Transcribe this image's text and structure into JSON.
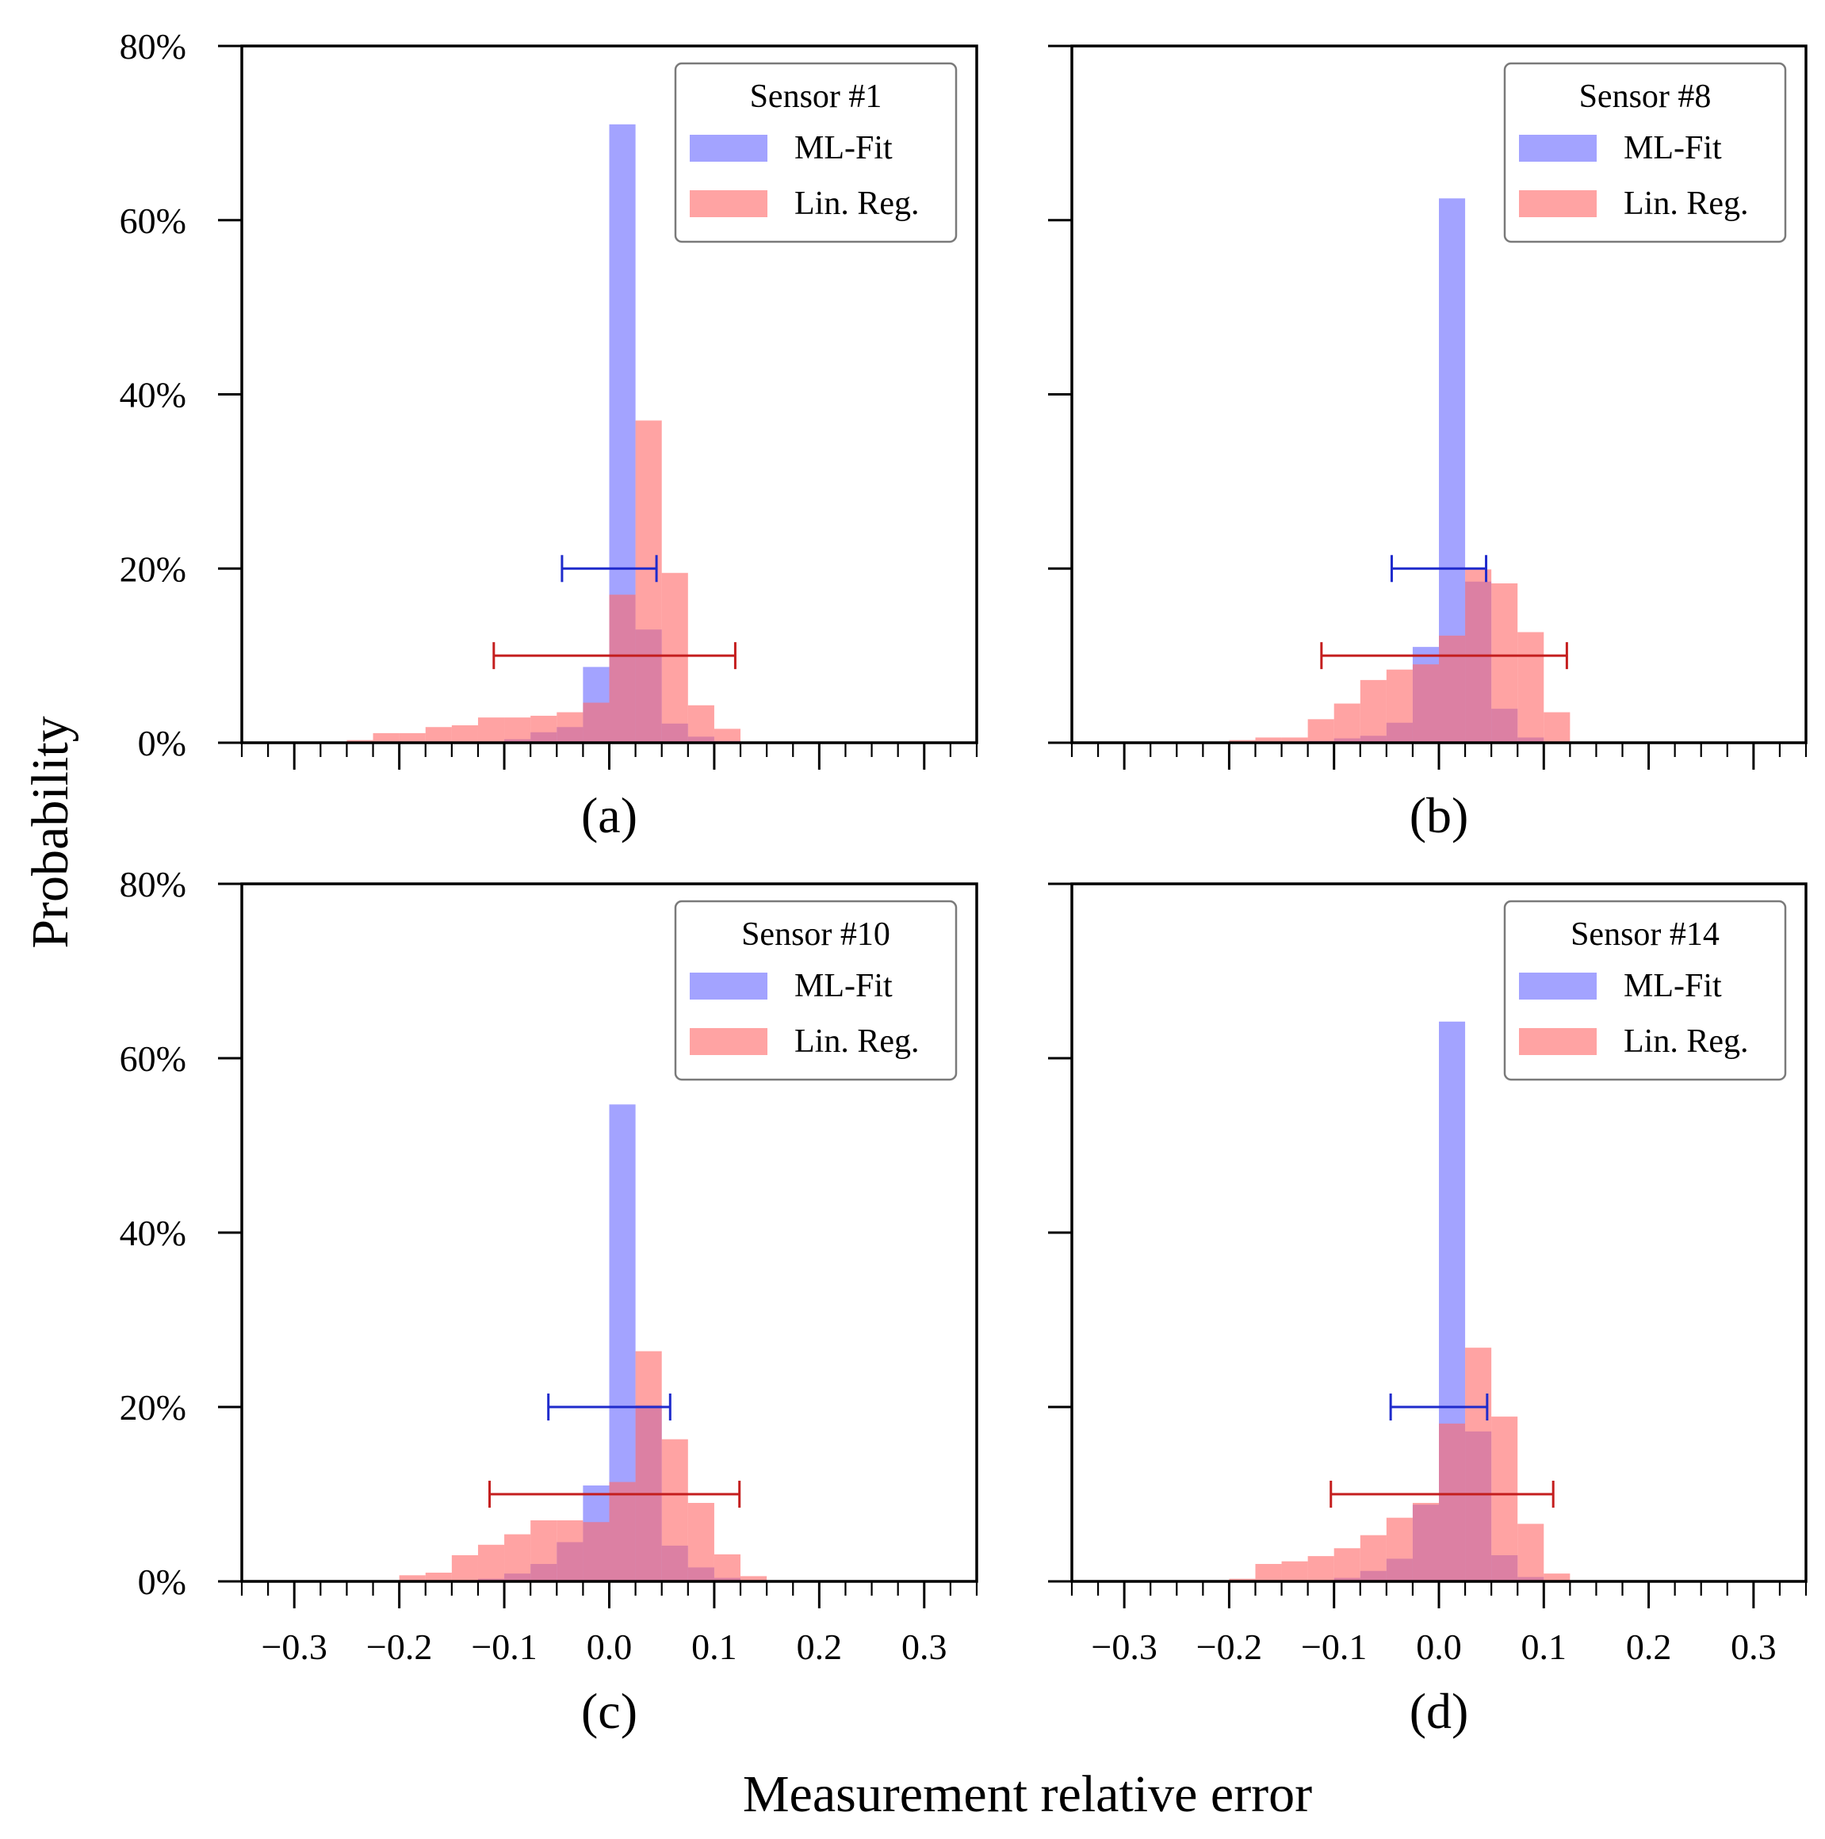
{
  "figure": {
    "ylabel": "Probability",
    "xlabel": "Measurement relative error"
  },
  "colors": {
    "ml_fit": "#6b6bff",
    "lin_reg": "#ff6b6b",
    "ml_fit_errbar": "#1f2bcc",
    "lin_reg_errbar": "#c41e1e"
  },
  "chart_data": [
    {
      "type": "bar",
      "panel_label": "(a)",
      "legend_title": "Sensor #1",
      "legend_placement": "top-right",
      "xlim": [
        -0.35,
        0.35
      ],
      "ylim": [
        0,
        80
      ],
      "xticks": [
        "−0.3",
        "−0.2",
        "−0.1",
        "0.0",
        "0.1",
        "0.2",
        "0.3"
      ],
      "yticks": [
        "0%",
        "20%",
        "40%",
        "60%",
        "80%"
      ],
      "show_xtick_labels": false,
      "show_ytick_labels": true,
      "bin_width": 0.025,
      "series": [
        {
          "name": "ML-Fit",
          "bins": [
            [
              -0.1,
              0.4
            ],
            [
              -0.075,
              1.2
            ],
            [
              -0.05,
              1.8
            ],
            [
              -0.025,
              8.7
            ],
            [
              0.0,
              71.0
            ],
            [
              0.025,
              13.0
            ],
            [
              0.05,
              2.2
            ],
            [
              0.075,
              0.7
            ],
            [
              0.1,
              0.2
            ]
          ],
          "error_bar": {
            "center": 0.0,
            "halfwidth": 0.045,
            "y": 20
          }
        },
        {
          "name": "Lin. Reg.",
          "bins": [
            [
              -0.25,
              0.3
            ],
            [
              -0.225,
              1.1
            ],
            [
              -0.2,
              1.1
            ],
            [
              -0.175,
              1.8
            ],
            [
              -0.15,
              2.0
            ],
            [
              -0.125,
              2.9
            ],
            [
              -0.1,
              2.9
            ],
            [
              -0.075,
              3.1
            ],
            [
              -0.05,
              3.5
            ],
            [
              -0.025,
              4.6
            ],
            [
              0.0,
              17.0
            ],
            [
              0.025,
              37.0
            ],
            [
              0.05,
              19.5
            ],
            [
              0.075,
              4.3
            ],
            [
              0.1,
              1.6
            ]
          ],
          "error_bar": {
            "center": 0.005,
            "halfwidth": 0.115,
            "y": 10
          }
        }
      ]
    },
    {
      "type": "bar",
      "panel_label": "(b)",
      "legend_title": "Sensor #8",
      "legend_placement": "top-right",
      "xlim": [
        -0.35,
        0.35
      ],
      "ylim": [
        0,
        80
      ],
      "xticks": [
        "−0.3",
        "−0.2",
        "−0.1",
        "0.0",
        "0.1",
        "0.2",
        "0.3"
      ],
      "yticks": [
        "0%",
        "20%",
        "40%",
        "60%",
        "80%"
      ],
      "show_xtick_labels": false,
      "show_ytick_labels": false,
      "bin_width": 0.025,
      "series": [
        {
          "name": "ML-Fit",
          "bins": [
            [
              -0.125,
              0.2
            ],
            [
              -0.1,
              0.5
            ],
            [
              -0.075,
              0.8
            ],
            [
              -0.05,
              2.3
            ],
            [
              -0.025,
              11.0
            ],
            [
              0.0,
              62.5
            ],
            [
              0.025,
              18.5
            ],
            [
              0.05,
              3.9
            ],
            [
              0.075,
              0.6
            ]
          ],
          "error_bar": {
            "center": 0.0,
            "halfwidth": 0.045,
            "y": 20
          }
        },
        {
          "name": "Lin. Reg.",
          "bins": [
            [
              -0.2,
              0.3
            ],
            [
              -0.175,
              0.6
            ],
            [
              -0.15,
              0.6
            ],
            [
              -0.125,
              2.7
            ],
            [
              -0.1,
              4.5
            ],
            [
              -0.075,
              7.2
            ],
            [
              -0.05,
              8.4
            ],
            [
              -0.025,
              9.0
            ],
            [
              0.0,
              12.3
            ],
            [
              0.025,
              19.9
            ],
            [
              0.05,
              18.3
            ],
            [
              0.075,
              12.7
            ],
            [
              0.1,
              3.5
            ]
          ],
          "error_bar": {
            "center": 0.005,
            "halfwidth": 0.117,
            "y": 10
          }
        }
      ]
    },
    {
      "type": "bar",
      "panel_label": "(c)",
      "legend_title": "Sensor #10",
      "legend_placement": "top-right",
      "xlim": [
        -0.35,
        0.35
      ],
      "ylim": [
        0,
        80
      ],
      "xticks": [
        "−0.3",
        "−0.2",
        "−0.1",
        "0.0",
        "0.1",
        "0.2",
        "0.3"
      ],
      "yticks": [
        "0%",
        "20%",
        "40%",
        "60%",
        "80%"
      ],
      "show_xtick_labels": true,
      "show_ytick_labels": true,
      "bin_width": 0.025,
      "series": [
        {
          "name": "ML-Fit",
          "bins": [
            [
              -0.125,
              0.3
            ],
            [
              -0.1,
              0.9
            ],
            [
              -0.075,
              2.0
            ],
            [
              -0.05,
              4.5
            ],
            [
              -0.025,
              11.0
            ],
            [
              0.0,
              54.7
            ],
            [
              0.025,
              20.2
            ],
            [
              0.05,
              4.1
            ],
            [
              0.075,
              1.6
            ],
            [
              0.1,
              0.4
            ],
            [
              0.125,
              0.1
            ]
          ],
          "error_bar": {
            "center": 0.0,
            "halfwidth": 0.058,
            "y": 20
          }
        },
        {
          "name": "Lin. Reg.",
          "bins": [
            [
              -0.2,
              0.7
            ],
            [
              -0.175,
              1.0
            ],
            [
              -0.15,
              3.0
            ],
            [
              -0.125,
              4.2
            ],
            [
              -0.1,
              5.4
            ],
            [
              -0.075,
              7.0
            ],
            [
              -0.05,
              7.0
            ],
            [
              -0.025,
              6.8
            ],
            [
              0.0,
              11.4
            ],
            [
              0.025,
              26.4
            ],
            [
              0.05,
              16.3
            ],
            [
              0.075,
              9.0
            ],
            [
              0.1,
              3.1
            ],
            [
              0.125,
              0.6
            ]
          ],
          "error_bar": {
            "center": 0.005,
            "halfwidth": 0.119,
            "y": 10
          }
        }
      ]
    },
    {
      "type": "bar",
      "panel_label": "(d)",
      "legend_title": "Sensor #14",
      "legend_placement": "top-right",
      "xlim": [
        -0.35,
        0.35
      ],
      "ylim": [
        0,
        80
      ],
      "xticks": [
        "−0.3",
        "−0.2",
        "−0.1",
        "0.0",
        "0.1",
        "0.2",
        "0.3"
      ],
      "yticks": [
        "0%",
        "20%",
        "40%",
        "60%",
        "80%"
      ],
      "show_xtick_labels": true,
      "show_ytick_labels": false,
      "bin_width": 0.025,
      "series": [
        {
          "name": "ML-Fit",
          "bins": [
            [
              -0.1,
              0.4
            ],
            [
              -0.075,
              1.2
            ],
            [
              -0.05,
              2.6
            ],
            [
              -0.025,
              8.8
            ],
            [
              0.0,
              64.2
            ],
            [
              0.025,
              17.2
            ],
            [
              0.05,
              3.0
            ],
            [
              0.075,
              0.5
            ]
          ],
          "error_bar": {
            "center": 0.0,
            "halfwidth": 0.046,
            "y": 20
          }
        },
        {
          "name": "Lin. Reg.",
          "bins": [
            [
              -0.2,
              0.3
            ],
            [
              -0.175,
              2.0
            ],
            [
              -0.15,
              2.3
            ],
            [
              -0.125,
              2.9
            ],
            [
              -0.1,
              3.8
            ],
            [
              -0.075,
              5.3
            ],
            [
              -0.05,
              7.3
            ],
            [
              -0.025,
              9.0
            ],
            [
              0.0,
              18.1
            ],
            [
              0.025,
              26.8
            ],
            [
              0.05,
              18.9
            ],
            [
              0.075,
              6.6
            ],
            [
              0.1,
              0.9
            ]
          ],
          "error_bar": {
            "center": 0.003,
            "halfwidth": 0.106,
            "y": 10
          }
        }
      ]
    }
  ]
}
